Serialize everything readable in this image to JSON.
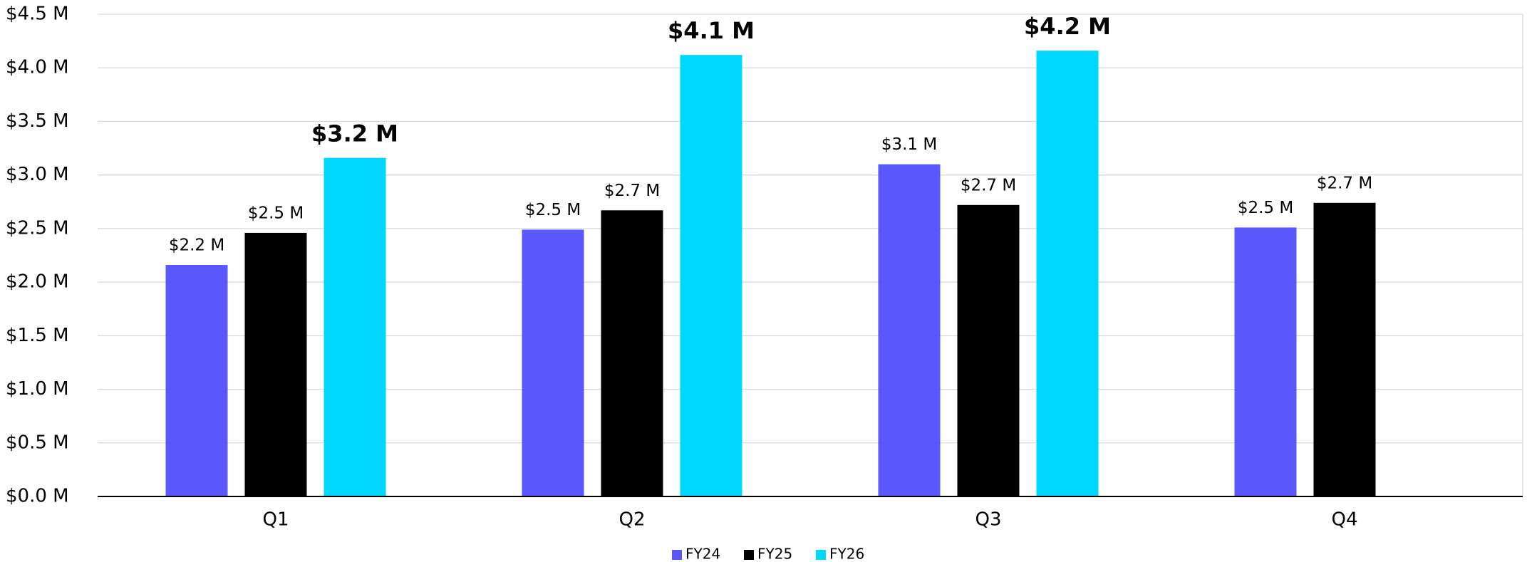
{
  "chart_data": {
    "type": "bar",
    "categories": [
      "Q1",
      "Q2",
      "Q3",
      "Q4"
    ],
    "series": [
      {
        "name": "FY24",
        "color": "#5b57ff",
        "values": [
          2.16,
          2.49,
          3.1,
          2.51
        ],
        "value_labels": [
          "$2.2 M",
          "$2.5 M",
          "$3.1 M",
          "$2.5 M"
        ]
      },
      {
        "name": "FY25",
        "color": "#000000",
        "values": [
          2.46,
          2.67,
          2.72,
          2.74
        ],
        "value_labels": [
          "$2.5 M",
          "$2.7 M",
          "$2.7 M",
          "$2.7 M"
        ]
      },
      {
        "name": "FY26",
        "color": "#00d7ff",
        "values": [
          3.16,
          4.12,
          4.16,
          null
        ],
        "value_labels": [
          "$3.2 M",
          "$4.1 M",
          "$4.2 M",
          null
        ]
      }
    ],
    "ylim": [
      0,
      4.5
    ],
    "yticks": [
      {
        "value": 0,
        "label": "$0.0 M"
      },
      {
        "value": 0.5,
        "label": "$0.5 M"
      },
      {
        "value": 1,
        "label": "$1.0 M"
      },
      {
        "value": 1.5,
        "label": "$1.5 M"
      },
      {
        "value": 2,
        "label": "$2.0 M"
      },
      {
        "value": 2.5,
        "label": "$2.5 M"
      },
      {
        "value": 3,
        "label": "$3.0 M"
      },
      {
        "value": 3.5,
        "label": "$3.5 M"
      },
      {
        "value": 4,
        "label": "$4.0 M"
      },
      {
        "value": 4.5,
        "label": "$4.5 M"
      }
    ],
    "grid": true,
    "legend": "bottom"
  }
}
